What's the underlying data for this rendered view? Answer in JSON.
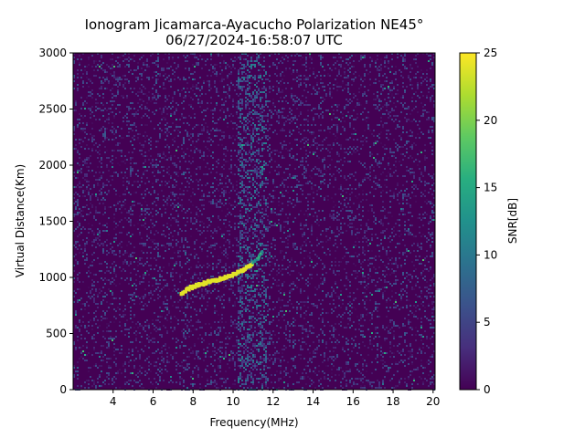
{
  "chart_data": {
    "type": "heatmap",
    "title": "Ionogram Jicamarca-Ayacucho Polarization NE45°",
    "subtitle": "06/27/2024-16:58:07 UTC",
    "xlabel": "Frequency(MHz)",
    "ylabel": "Virtual Distance(Km)",
    "xlim": [
      2.0,
      20.1
    ],
    "ylim": [
      0,
      3000
    ],
    "xticks": [
      4,
      6,
      8,
      10,
      12,
      14,
      16,
      18,
      20
    ],
    "yticks": [
      0,
      500,
      1000,
      1500,
      2000,
      2500,
      3000
    ],
    "colorbar": {
      "label": "SNR[dB]",
      "range": [
        0,
        25
      ],
      "ticks": [
        0,
        5,
        10,
        15,
        20,
        25
      ],
      "colormap": "viridis"
    },
    "features": {
      "echo_trace": {
        "snr_db": 24,
        "points": [
          [
            7.4,
            850
          ],
          [
            7.8,
            900
          ],
          [
            8.2,
            930
          ],
          [
            8.6,
            950
          ],
          [
            9.0,
            970
          ],
          [
            9.4,
            990
          ],
          [
            9.8,
            1010
          ],
          [
            10.2,
            1040
          ],
          [
            10.6,
            1080
          ],
          [
            11.0,
            1120
          ],
          [
            11.3,
            1170
          ],
          [
            11.5,
            1230
          ]
        ]
      },
      "vertical_noise_band_mhz": [
        10.2,
        11.6
      ],
      "background_snr_db": [
        0,
        6
      ]
    }
  }
}
